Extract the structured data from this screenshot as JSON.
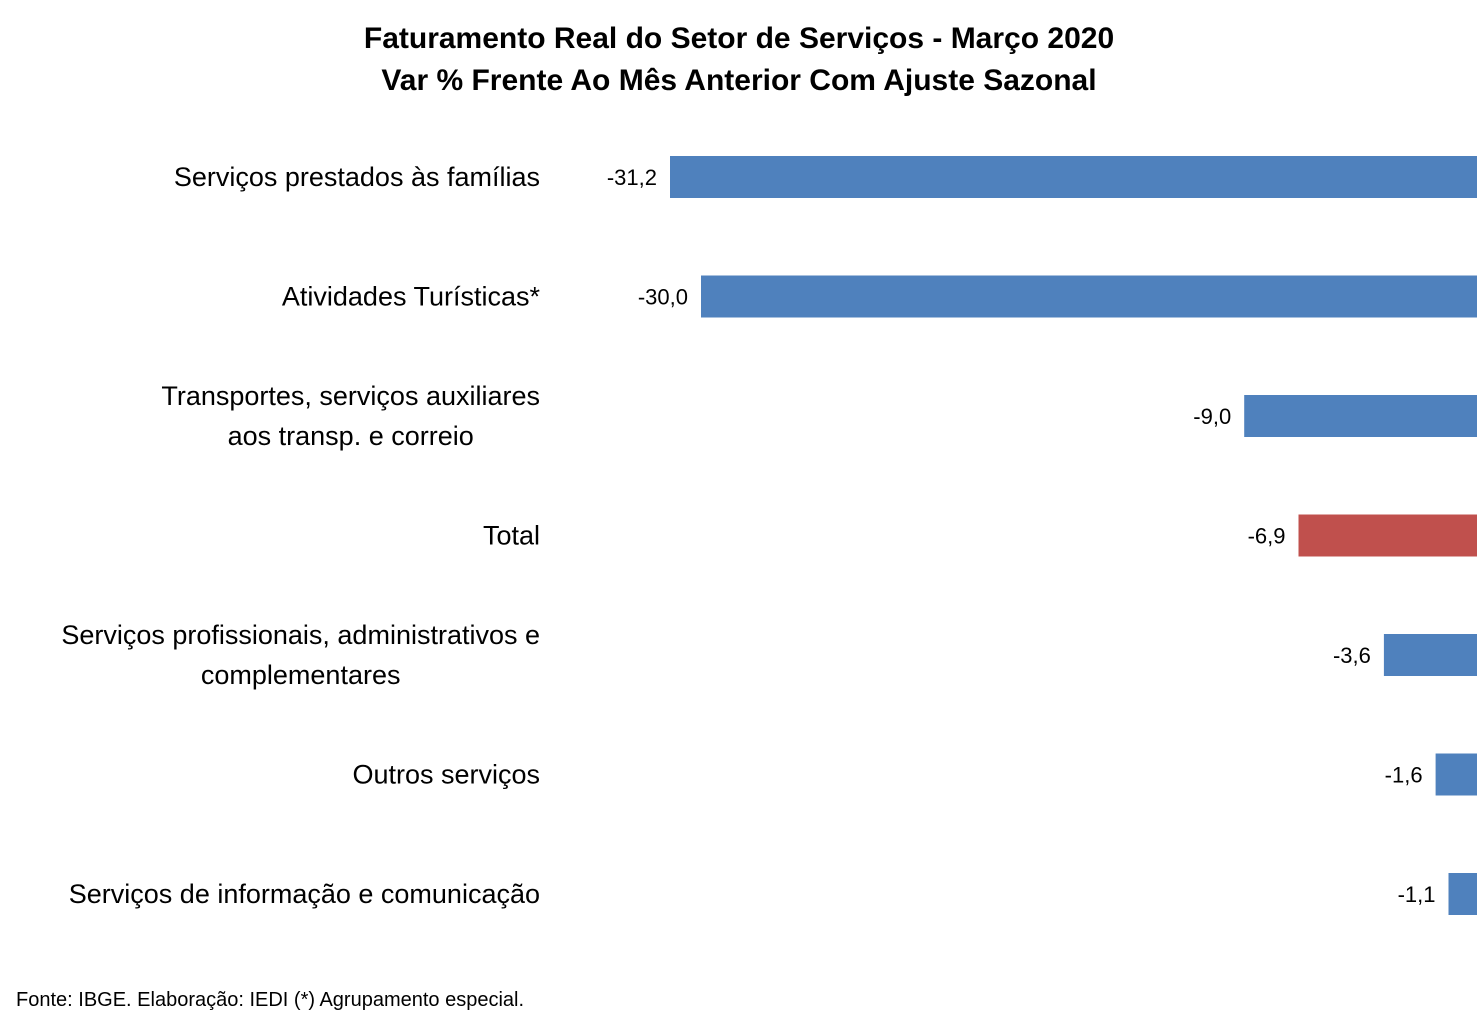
{
  "chart_data": {
    "type": "bar",
    "orientation": "horizontal",
    "title": "Faturamento Real do Setor de Serviços - Março 2020",
    "subtitle": "Var % Frente Ao Mês Anterior Com Ajuste Sazonal",
    "categories": [
      [
        "Serviços prestados às famílias"
      ],
      [
        "Atividades Turísticas*"
      ],
      [
        "Transportes, serviços auxiliares",
        "aos transp. e correio"
      ],
      [
        "Total"
      ],
      [
        "Serviços profissionais, administrativos e",
        "complementares"
      ],
      [
        "Outros serviços"
      ],
      [
        "Serviços de informação e comunicação"
      ]
    ],
    "values": [
      -31.2,
      -30.0,
      -9.0,
      -6.9,
      -3.6,
      -1.6,
      -1.1
    ],
    "data_labels": [
      "-31,2",
      "-30,0",
      "-9,0",
      "-6,9",
      "-3,6",
      "-1,6",
      "-1,1"
    ],
    "bar_colors": [
      "#4F81BD",
      "#4F81BD",
      "#4F81BD",
      "#C0504D",
      "#4F81BD",
      "#4F81BD",
      "#4F81BD"
    ],
    "xlim": [
      -31.2,
      0
    ],
    "grid": false,
    "legend": "none"
  },
  "footer": {
    "source": "Fonte: IBGE. Elaboração: IEDI (*) Agrupamento especial."
  }
}
